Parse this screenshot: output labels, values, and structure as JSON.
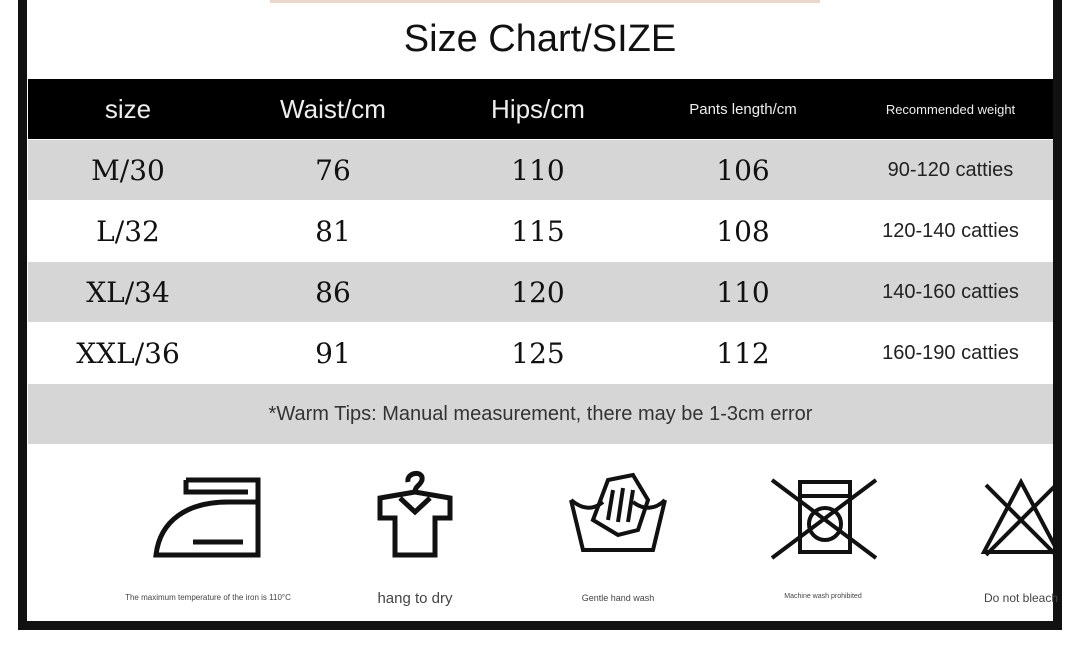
{
  "title": "Size Chart/SIZE",
  "headers": [
    "size",
    "Waist/cm",
    "Hips/cm",
    "Pants length/cm",
    "Recommended weight"
  ],
  "rows": [
    [
      "M/30",
      "76",
      "110",
      "106",
      "90-120 catties"
    ],
    [
      "L/32",
      "81",
      "115",
      "108",
      "120-140 catties"
    ],
    [
      "XL/34",
      "86",
      "120",
      "110",
      "140-160 catties"
    ],
    [
      "XXL/36",
      "91",
      "125",
      "112",
      "160-190 catties"
    ]
  ],
  "tips": "*Warm Tips: Manual measurement, there may be 1-3cm error",
  "care": [
    {
      "icon": "iron-icon",
      "label": "The maximum temperature of the iron is 110°C"
    },
    {
      "icon": "hang-dry-icon",
      "label": "hang to dry"
    },
    {
      "icon": "hand-wash-icon",
      "label": "Gentle hand wash"
    },
    {
      "icon": "no-machine-wash-icon",
      "label": "Machine wash prohibited"
    },
    {
      "icon": "no-bleach-icon",
      "label": "Do not bleach"
    }
  ]
}
